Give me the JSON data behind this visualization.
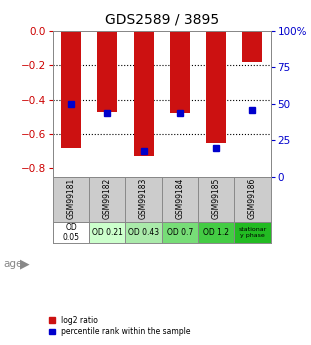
{
  "title": "GDS2589 / 3895",
  "samples": [
    "GSM99181",
    "GSM99182",
    "GSM99183",
    "GSM99184",
    "GSM99185",
    "GSM99186"
  ],
  "log2_ratio": [
    -0.68,
    -0.47,
    -0.73,
    -0.48,
    -0.65,
    -0.18
  ],
  "percentile_rank": [
    50,
    44,
    18,
    44,
    20,
    46
  ],
  "age_labels": [
    "OD\n0.05",
    "OD 0.21",
    "OD 0.43",
    "OD 0.7",
    "OD 1.2",
    "stationar\ny phase"
  ],
  "age_colors": [
    "#ffffff",
    "#ccffcc",
    "#aaeaaa",
    "#77dd77",
    "#44cc44",
    "#22bb22"
  ],
  "ylim_left": [
    -0.85,
    0.0
  ],
  "ylim_right": [
    0,
    100
  ],
  "yticks_left": [
    0.0,
    -0.2,
    -0.4,
    -0.6,
    -0.8
  ],
  "yticks_right": [
    0,
    25,
    50,
    75,
    100
  ],
  "bar_color": "#cc1111",
  "dot_color": "#0000cc",
  "label_color_left": "#cc0000",
  "label_color_right": "#0000cc",
  "sample_box_color": "#cccccc"
}
